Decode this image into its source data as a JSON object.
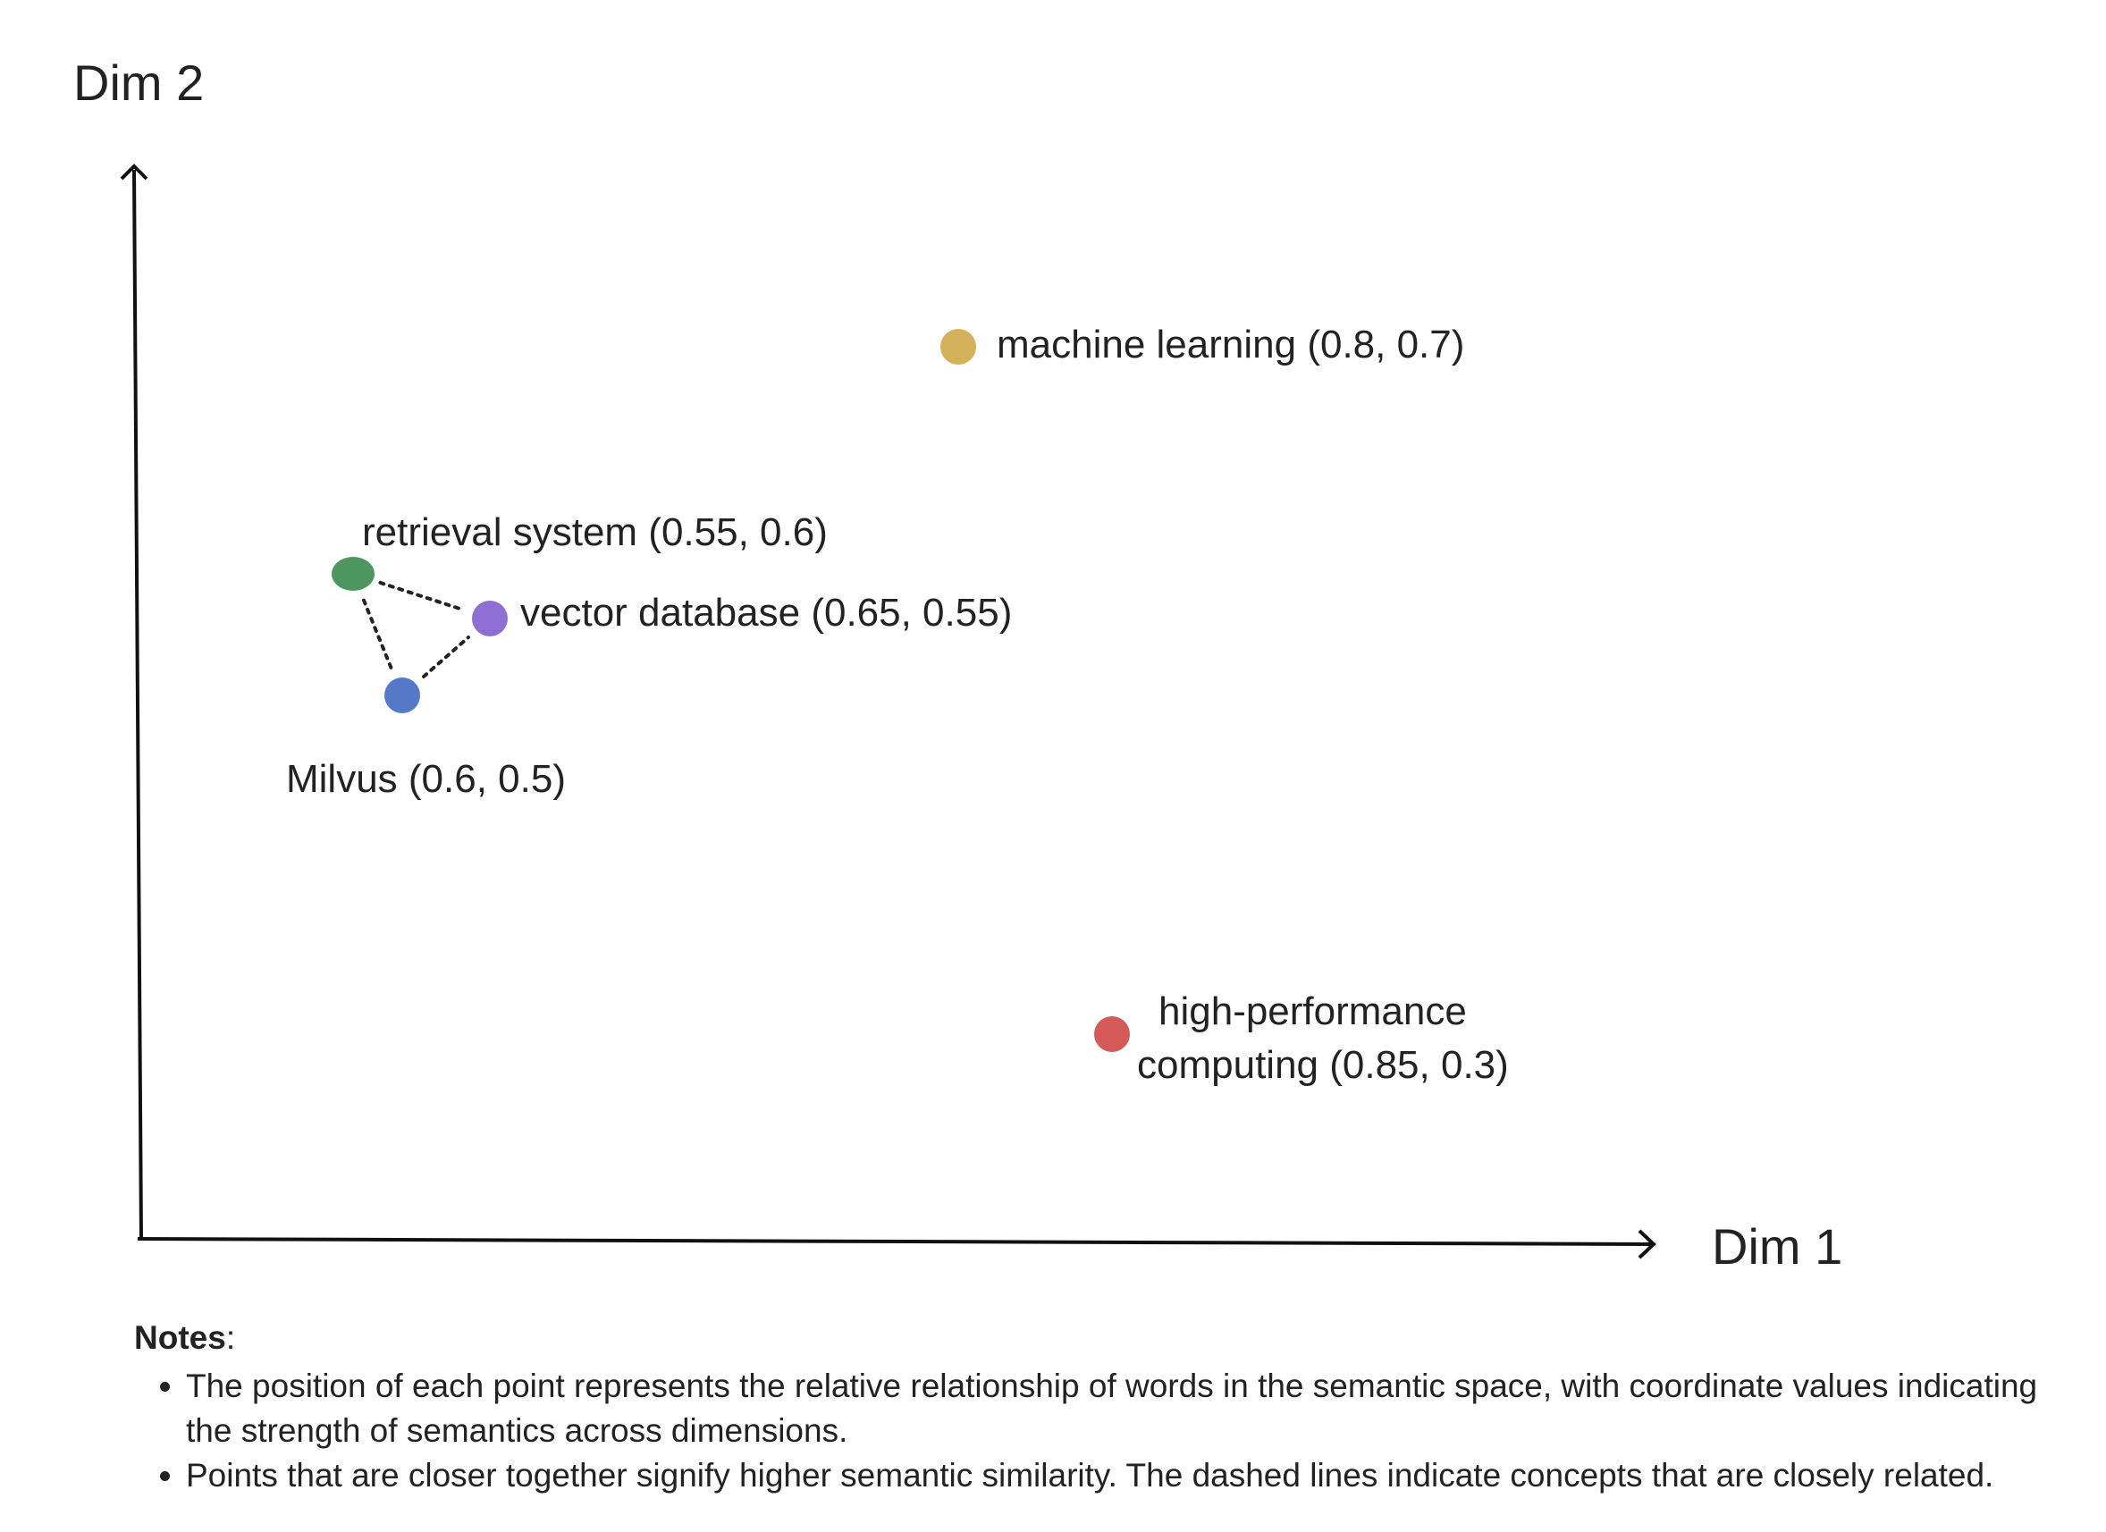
{
  "chart_data": {
    "type": "scatter",
    "xlabel": "Dim 1",
    "ylabel": "Dim 2",
    "points": [
      {
        "word": "machine learning",
        "x": 0.8,
        "y": 0.7,
        "color": "#d4b158",
        "label": "machine learning (0.8, 0.7)"
      },
      {
        "word": "retrieval system",
        "x": 0.55,
        "y": 0.6,
        "color": "#4e9660",
        "label": "retrieval system (0.55, 0.6)"
      },
      {
        "word": "vector database",
        "x": 0.65,
        "y": 0.55,
        "color": "#8f6fd4",
        "label": "vector database (0.65, 0.55)"
      },
      {
        "word": "Milvus",
        "x": 0.6,
        "y": 0.5,
        "color": "#5479c9",
        "label": "Milvus (0.6, 0.5)"
      },
      {
        "word": "high-performance computing",
        "x": 0.85,
        "y": 0.3,
        "color": "#d45a5a",
        "label_line1": "high-performance",
        "label_line2": "computing (0.85, 0.3)"
      }
    ],
    "related_links": [
      [
        "retrieval system",
        "vector database"
      ],
      [
        "retrieval system",
        "Milvus"
      ],
      [
        "Milvus",
        "vector database"
      ]
    ],
    "grid": false,
    "legend": "none"
  },
  "notes": {
    "heading": "Notes",
    "items": [
      "The position of each point represents the relative relationship of words in the semantic space, with coordinate values indicating the strength of semantics across dimensions.",
      "Points that are closer together signify higher semantic similarity. The dashed lines indicate concepts that are closely related."
    ]
  }
}
